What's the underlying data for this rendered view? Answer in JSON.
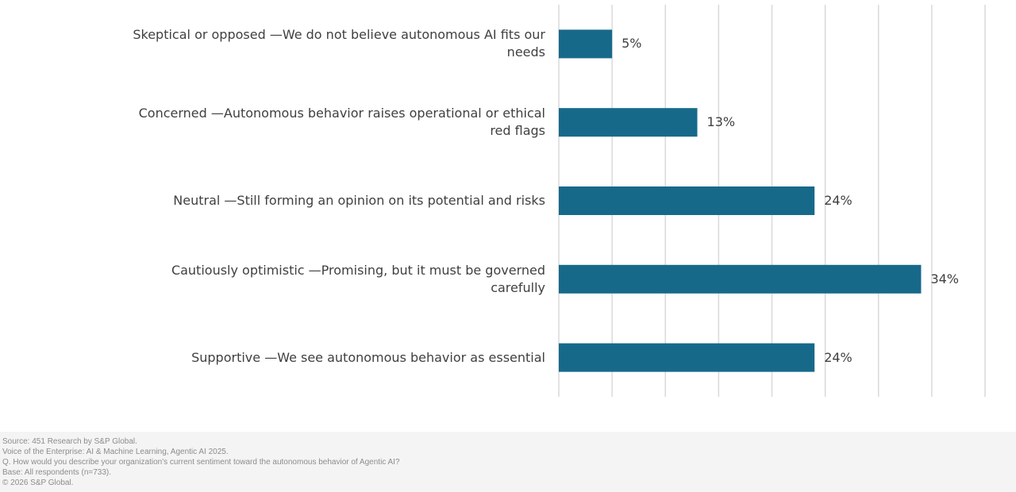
{
  "chart_data": {
    "type": "bar",
    "orientation": "horizontal",
    "categories": [
      "Skeptical or opposed —We do not believe autonomous AI fits our needs",
      "Concerned —Autonomous behavior raises operational or ethical red flags",
      "Neutral —Still forming an opinion on its potential and risks",
      "Cautiously optimistic —Promising, but it must be governed carefully",
      "Supportive —We see autonomous behavior as essential"
    ],
    "values": [
      5,
      13,
      24,
      34,
      24
    ],
    "value_labels": [
      "5%",
      "13%",
      "24%",
      "34%",
      "24%"
    ],
    "unit": "%",
    "xlim": [
      0,
      40
    ],
    "bar_color": "#17698a",
    "grid": true,
    "legend": "none"
  },
  "footer": {
    "lines": [
      "Source: 451 Research by S&P Global.",
      "Voice of the Enterprise: AI & Machine Learning, Agentic AI 2025.",
      "Q. How would you describe your organization's current sentiment toward the autonomous behavior of Agentic AI?",
      "Base: All respondents (n=733).",
      "© 2026 S&P Global."
    ]
  }
}
